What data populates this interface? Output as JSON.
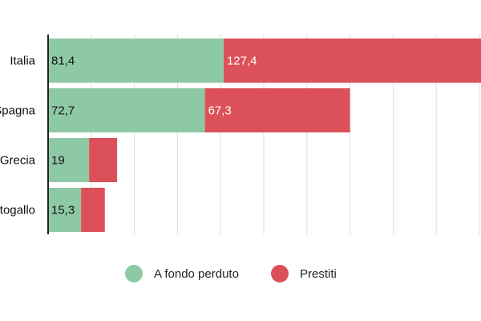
{
  "chart_data": {
    "type": "bar",
    "orientation": "horizontal",
    "stacked": true,
    "categories": [
      "Italia",
      "Spagna",
      "Grecia",
      "Portogallo"
    ],
    "series": [
      {
        "name": "A fondo perduto",
        "color": "#8ec9a6",
        "values": [
          81.4,
          72.7,
          19,
          15.3
        ],
        "labels": [
          "81,4",
          "72,7",
          "19",
          "15,3"
        ],
        "label_color": "#111111"
      },
      {
        "name": "Prestiti",
        "color": "#dc5159",
        "values": [
          127.4,
          67.3,
          13,
          11
        ],
        "labels": [
          "127,4",
          "67,3",
          "",
          ""
        ],
        "label_color": "#ffffff"
      }
    ],
    "title": "",
    "xlabel": "",
    "ylabel": "",
    "xlim": [
      0,
      200
    ],
    "grid": true,
    "legend_position": "bottom"
  }
}
